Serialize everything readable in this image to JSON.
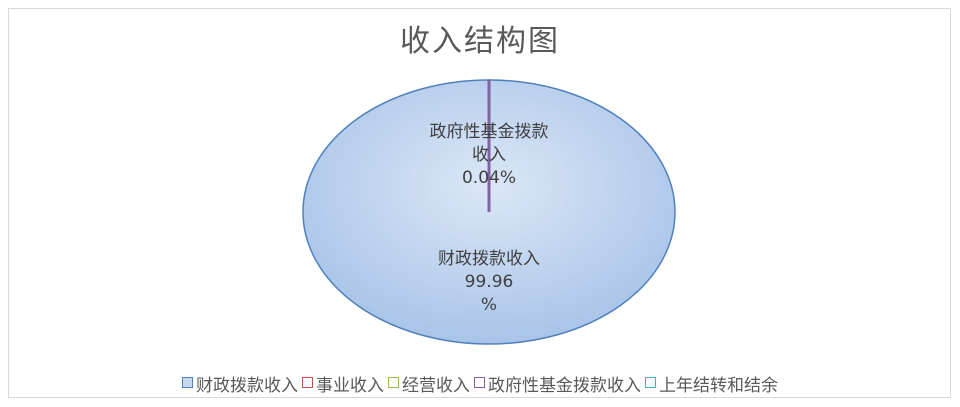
{
  "chart_data": {
    "type": "pie",
    "title": "收入结构图",
    "categories": [
      "财政拨款收入",
      "事业收入",
      "经营收入",
      "政府性基金拨款收入",
      "上年结转和结余"
    ],
    "values": [
      99.96,
      0,
      0,
      0.04,
      0
    ],
    "unit": "%",
    "data_labels": [
      {
        "category": "政府性基金拨款收入",
        "lines": [
          "政府性基金拨款",
          "收入",
          "0.04%"
        ]
      },
      {
        "category": "财政拨款收入",
        "lines": [
          "财政拨款收入",
          "99.96",
          "%"
        ]
      }
    ],
    "legend_position": "bottom",
    "colors": {
      "财政拨款收入": "#c6d9f1",
      "事业收入": "#c0504d",
      "经营收入": "#9bbb59",
      "政府性基金拨款收入": "#8064a2",
      "上年结转和结余": "#4bacc6",
      "slice_border": "#4f81bd"
    }
  }
}
